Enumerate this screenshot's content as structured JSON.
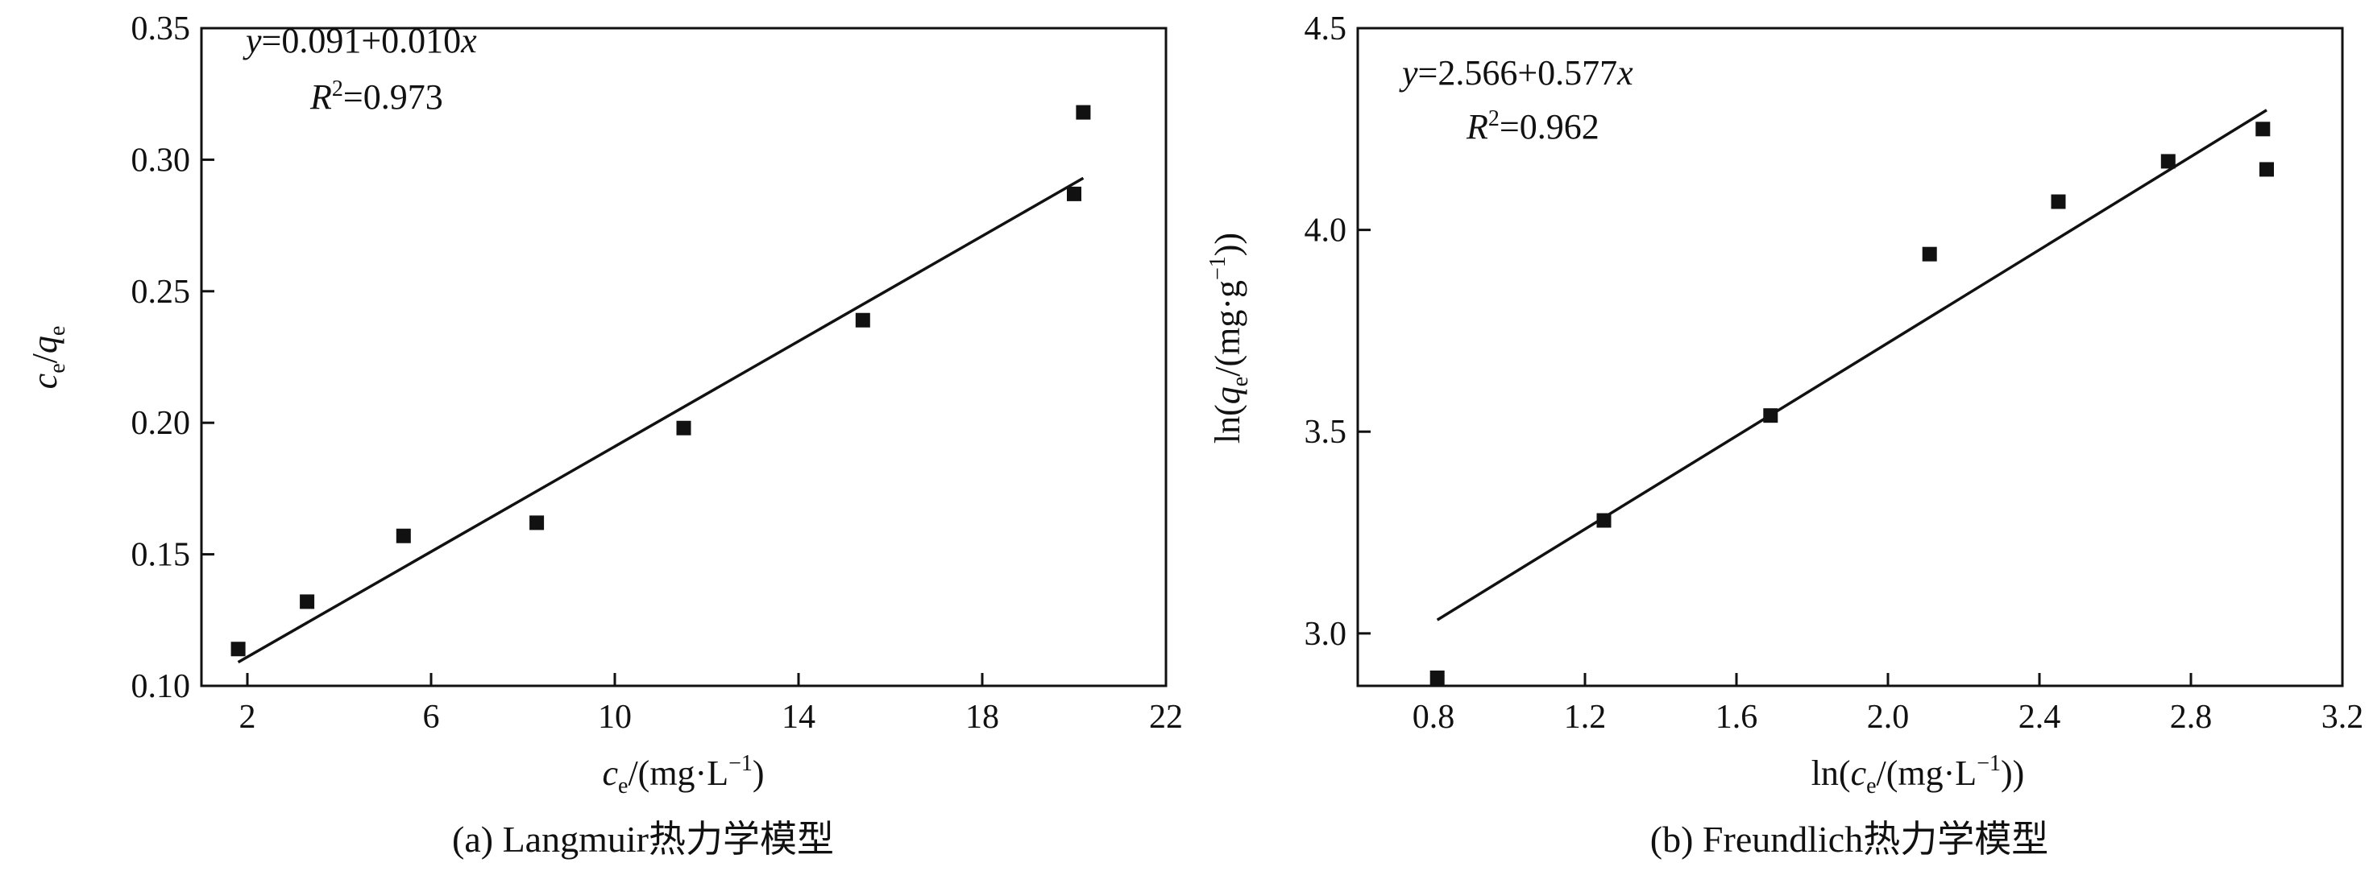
{
  "chart_data": [
    {
      "type": "scatter",
      "caption": "(a) Langmuir热力学模型",
      "xlim": [
        1,
        22
      ],
      "ylim": [
        0.1,
        0.35
      ],
      "xticks": [
        "2",
        "6",
        "10",
        "14",
        "18",
        "22"
      ],
      "yticks": [
        "0.10",
        "0.15",
        "0.20",
        "0.25",
        "0.30",
        "0.35"
      ],
      "xlabel": {
        "main": "c",
        "sub": "e",
        "rest": "/(mg·L",
        "sup": "−1",
        "end": ")"
      },
      "ylabel": {
        "a": "c",
        "a_sub": "e",
        "slash": "/",
        "b": "q",
        "b_sub": "e"
      },
      "equation": {
        "var": "y",
        "text": "=0.091+0.010",
        "xvar": "x"
      },
      "r2": {
        "var": "R",
        "sup": "2",
        "text": "=0.973"
      },
      "points": [
        {
          "x": 1.8,
          "y": 0.114
        },
        {
          "x": 3.3,
          "y": 0.132
        },
        {
          "x": 5.4,
          "y": 0.157
        },
        {
          "x": 8.3,
          "y": 0.162
        },
        {
          "x": 11.5,
          "y": 0.198
        },
        {
          "x": 15.4,
          "y": 0.239
        },
        {
          "x": 20.0,
          "y": 0.287
        },
        {
          "x": 20.2,
          "y": 0.318
        }
      ],
      "fit": {
        "intercept": 0.091,
        "slope": 0.01,
        "x_range": [
          1.8,
          20.2
        ]
      }
    },
    {
      "type": "scatter",
      "caption": "(b) Freundlich热力学模型",
      "xlim": [
        0.6,
        3.2
      ],
      "ylim": [
        2.87,
        4.5
      ],
      "xticks": [
        "0.8",
        "1.2",
        "1.6",
        "2.0",
        "2.4",
        "2.8",
        "3.2"
      ],
      "yticks": [
        "3.0",
        "3.5",
        "4.0",
        "4.5"
      ],
      "xlabel": {
        "pre": "ln(",
        "main": "c",
        "sub": "e",
        "rest": "/(mg·L",
        "sup": "−1",
        "end": "))"
      },
      "ylabel": {
        "pre": "ln(",
        "main": "q",
        "sub": "e",
        "rest": "/(mg·g",
        "sup": "−1",
        "end": "))"
      },
      "equation": {
        "var": "y",
        "text": "=2.566+0.577",
        "xvar": "x"
      },
      "r2": {
        "var": "R",
        "sup": "2",
        "text": "=0.962"
      },
      "points": [
        {
          "x": 0.81,
          "y": 2.89
        },
        {
          "x": 1.25,
          "y": 3.28
        },
        {
          "x": 1.69,
          "y": 3.54
        },
        {
          "x": 2.11,
          "y": 3.94
        },
        {
          "x": 2.45,
          "y": 4.07
        },
        {
          "x": 2.74,
          "y": 4.17
        },
        {
          "x": 2.99,
          "y": 4.25
        },
        {
          "x": 3.0,
          "y": 4.15
        }
      ],
      "fit": {
        "intercept": 2.566,
        "slope": 0.577,
        "x_range": [
          0.81,
          3.0
        ]
      }
    }
  ]
}
